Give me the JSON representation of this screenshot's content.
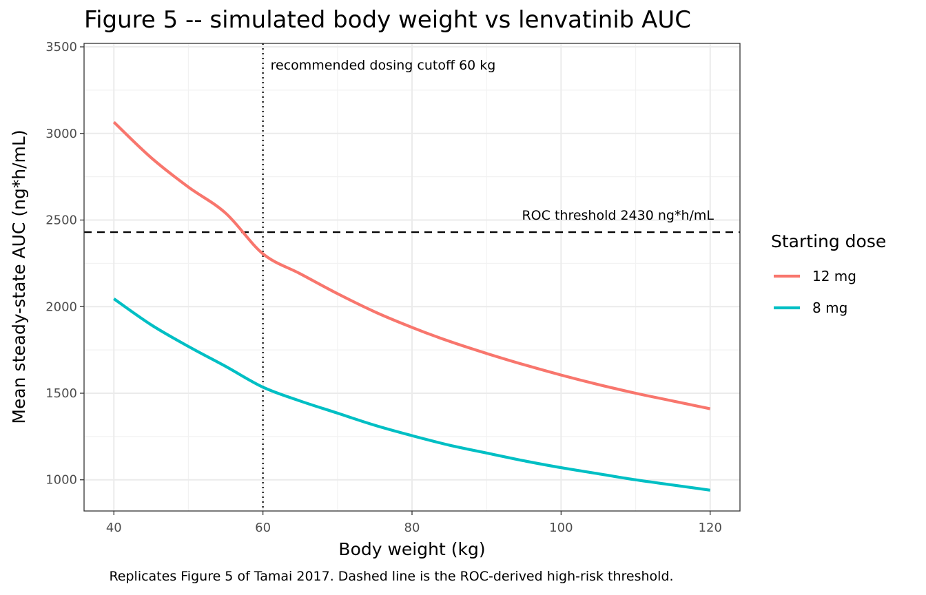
{
  "chart_data": {
    "type": "line",
    "title": "Figure 5 -- simulated body weight vs lenvatinib AUC",
    "xlabel": "Body weight (kg)",
    "ylabel": "Mean steady-state AUC (ng*h/mL)",
    "caption": "Replicates Figure 5 of Tamai 2017. Dashed line is the ROC-derived high-risk threshold.",
    "xlim": [
      36,
      124
    ],
    "ylim": [
      820,
      3520
    ],
    "x_ticks": [
      40,
      60,
      80,
      100,
      120
    ],
    "y_ticks": [
      1000,
      1500,
      2000,
      2500,
      3000,
      3500
    ],
    "x_minor_grid": [
      50,
      70,
      90,
      110
    ],
    "y_minor_grid": [
      1250,
      1750,
      2250,
      2750,
      3250
    ],
    "grid": true,
    "legend": {
      "title": "Starting dose",
      "position": "right"
    },
    "x": [
      40,
      45,
      50,
      55,
      60,
      65,
      70,
      75,
      80,
      85,
      90,
      95,
      100,
      105,
      110,
      115,
      120
    ],
    "series": [
      {
        "name": "12 mg",
        "color": "#F8766D",
        "values": [
          3065,
          2860,
          2690,
          2540,
          2305,
          2190,
          2075,
          1970,
          1880,
          1800,
          1730,
          1665,
          1605,
          1550,
          1500,
          1455,
          1410
        ]
      },
      {
        "name": "8 mg",
        "color": "#00BFC4",
        "values": [
          2045,
          1895,
          1770,
          1655,
          1535,
          1455,
          1385,
          1315,
          1255,
          1200,
          1155,
          1110,
          1070,
          1035,
          1000,
          970,
          940
        ]
      }
    ],
    "reference_lines": [
      {
        "type": "vertical",
        "x": 60,
        "style": "dotted",
        "label": "recommended dosing cutoff 60 kg"
      },
      {
        "type": "horizontal",
        "y": 2430,
        "style": "dashed",
        "label": "ROC threshold 2430 ng*h/mL"
      }
    ]
  }
}
